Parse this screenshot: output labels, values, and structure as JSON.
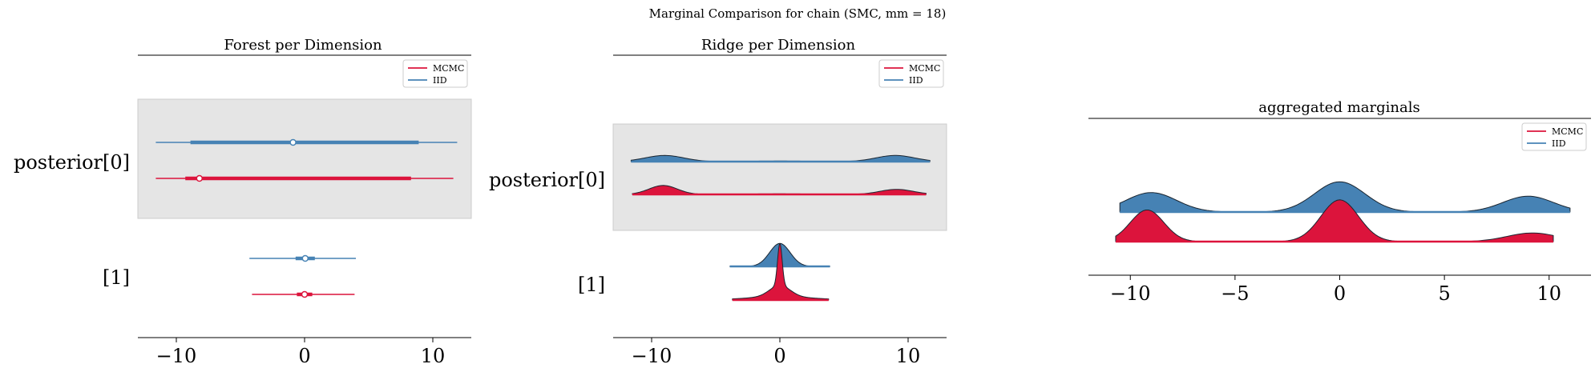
{
  "suptitle": "Marginal Comparison for chain (SMC, mm = 18)",
  "colors": {
    "mcmc": "#dc143c",
    "iid": "#4682b4",
    "band": "#e5e5e5"
  },
  "legend": [
    {
      "key": "mcmc",
      "label": "MCMC"
    },
    {
      "key": "iid",
      "label": "IID"
    }
  ],
  "chart_data": [
    {
      "type": "forest",
      "title": "Forest per Dimension",
      "xlim": [
        -13,
        13
      ],
      "xticks": [
        -10,
        0,
        10
      ],
      "tick_labels": [
        "−10",
        "0",
        "10"
      ],
      "rows": [
        {
          "label": "posterior[0]",
          "iid": {
            "hdi": [
              -11.6,
              11.9
            ],
            "iqr": [
              -8.9,
              8.9
            ],
            "median": -0.9
          },
          "mcmc": {
            "hdi": [
              -11.6,
              11.6
            ],
            "iqr": [
              -9.3,
              8.3
            ],
            "median": -8.2
          }
        },
        {
          "label": "[1]",
          "iid": {
            "hdi": [
              -4.3,
              4.0
            ],
            "iqr": [
              -0.7,
              0.8
            ],
            "median": 0.05
          },
          "mcmc": {
            "hdi": [
              -4.1,
              3.9
            ],
            "iqr": [
              -0.6,
              0.6
            ],
            "median": 0.0
          }
        }
      ]
    },
    {
      "type": "ridge",
      "title": "Ridge per Dimension",
      "xlim": [
        -13,
        13
      ],
      "xticks": [
        -10,
        0,
        10
      ],
      "tick_labels": [
        "−10",
        "0",
        "10"
      ],
      "rows": [
        {
          "label": "posterior[0]",
          "iid": {
            "range": [
              -11.6,
              11.7
            ],
            "peaks": [
              [
                -9,
                0.11,
                1.5
              ],
              [
                0,
                0.01,
                2.5
              ],
              [
                9,
                0.11,
                1.5
              ]
            ]
          },
          "mcmc": {
            "range": [
              -11.5,
              11.4
            ],
            "peaks": [
              [
                -9.1,
                0.16,
                1.1
              ],
              [
                0,
                0.01,
                2.5
              ],
              [
                9.1,
                0.09,
                1.3
              ]
            ]
          }
        },
        {
          "label": "[1]",
          "iid": {
            "range": [
              -3.9,
              3.9
            ],
            "peaks": [
              [
                0,
                0.41,
                0.8
              ]
            ]
          },
          "mcmc": {
            "range": [
              -3.7,
              3.8
            ],
            "peaks": [
              [
                0,
                0.75,
                0.18
              ],
              [
                0,
                0.2,
                0.8
              ],
              [
                0,
                0.06,
                2.5
              ]
            ]
          }
        }
      ]
    },
    {
      "type": "ridge",
      "title": "aggregated marginals",
      "xlim": [
        -12,
        12
      ],
      "xticks": [
        -10,
        -5,
        0,
        5,
        10
      ],
      "tick_labels": [
        "−10",
        "−5",
        "0",
        "5",
        "10"
      ],
      "rows": [
        {
          "label": "",
          "iid": {
            "range": [
              -10.5,
              11.0
            ],
            "peaks": [
              [
                -9.0,
                0.27,
                1.2
              ],
              [
                0,
                0.42,
                1.2
              ],
              [
                9.0,
                0.22,
                1.2
              ]
            ]
          },
          "mcmc": {
            "range": [
              -10.7,
              10.2
            ],
            "peaks": [
              [
                -9.2,
                0.44,
                0.8
              ],
              [
                0,
                0.58,
                0.9
              ],
              [
                9.2,
                0.12,
                1.2
              ]
            ]
          }
        }
      ]
    }
  ]
}
